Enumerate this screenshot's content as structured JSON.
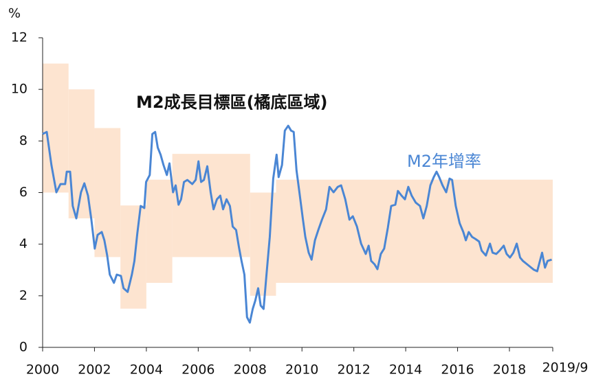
{
  "chart_data": {
    "type": "line",
    "y_label": "%",
    "target_zone": {
      "name": "M2成長目標區(橘底區域)",
      "color": "#fde4d0",
      "start": [
        2000,
        2001,
        2002,
        2003,
        2004,
        2005,
        2008,
        2009
      ],
      "end": [
        2001,
        2002,
        2003,
        2004,
        2005,
        2008,
        2009,
        2019.67
      ],
      "low": [
        6,
        5,
        3.5,
        1.5,
        2.5,
        3.5,
        2,
        2.5
      ],
      "high": [
        11,
        10,
        8.5,
        5.5,
        6.5,
        7.5,
        6,
        6.5
      ]
    },
    "x": [
      2000.0,
      2000.16,
      2000.34,
      2000.53,
      2000.69,
      2000.87,
      2000.93,
      2001.06,
      2001.16,
      2001.3,
      2001.48,
      2001.61,
      2001.75,
      2001.88,
      2002.01,
      2002.12,
      2002.28,
      2002.38,
      2002.49,
      2002.59,
      2002.75,
      2002.86,
      2003.02,
      2003.12,
      2003.28,
      2003.44,
      2003.54,
      2003.65,
      2003.78,
      2003.92,
      2003.99,
      2004.13,
      2004.23,
      2004.34,
      2004.44,
      2004.55,
      2004.66,
      2004.79,
      2004.89,
      2005.03,
      2005.13,
      2005.24,
      2005.34,
      2005.45,
      2005.58,
      2005.77,
      2005.9,
      2006.01,
      2006.11,
      2006.22,
      2006.35,
      2006.48,
      2006.59,
      2006.72,
      2006.85,
      2006.96,
      2007.09,
      2007.22,
      2007.33,
      2007.46,
      2007.57,
      2007.67,
      2007.78,
      2007.88,
      2007.99,
      2008.1,
      2008.2,
      2008.31,
      2008.41,
      2008.52,
      2008.62,
      2008.76,
      2008.89,
      2009.02,
      2009.1,
      2009.23,
      2009.34,
      2009.47,
      2009.58,
      2009.68,
      2009.79,
      2009.9,
      2010.03,
      2010.13,
      2010.26,
      2010.37,
      2010.5,
      2010.63,
      2010.77,
      2010.93,
      2011.06,
      2011.22,
      2011.38,
      2011.51,
      2011.67,
      2011.83,
      2011.96,
      2012.12,
      2012.28,
      2012.46,
      2012.57,
      2012.67,
      2012.8,
      2012.91,
      2013.04,
      2013.17,
      2013.31,
      2013.44,
      2013.6,
      2013.7,
      2013.84,
      2013.97,
      2014.1,
      2014.23,
      2014.39,
      2014.55,
      2014.68,
      2014.81,
      2014.95,
      2015.08,
      2015.19,
      2015.29,
      2015.42,
      2015.56,
      2015.69,
      2015.79,
      2015.93,
      2016.08,
      2016.22,
      2016.32,
      2016.43,
      2016.56,
      2016.69,
      2016.83,
      2016.93,
      2017.09,
      2017.25,
      2017.35,
      2017.49,
      2017.62,
      2017.78,
      2017.89,
      2018.02,
      2018.15,
      2018.28,
      2018.41,
      2018.52,
      2018.68,
      2018.78,
      2018.94,
      2019.07,
      2019.26,
      2019.37,
      2019.47,
      2019.63
    ],
    "series": [
      {
        "name": "M2年增率",
        "color": "#4a86d4",
        "values": [
          8.27,
          8.35,
          7.07,
          6.01,
          6.33,
          6.33,
          6.81,
          6.81,
          5.48,
          5.0,
          6.01,
          6.36,
          5.88,
          4.95,
          3.83,
          4.36,
          4.47,
          4.15,
          3.56,
          2.82,
          2.5,
          2.82,
          2.77,
          2.29,
          2.15,
          2.82,
          3.35,
          4.41,
          5.48,
          5.4,
          6.41,
          6.68,
          8.27,
          8.35,
          7.74,
          7.47,
          7.07,
          6.68,
          7.13,
          6.01,
          6.28,
          5.53,
          5.74,
          6.41,
          6.49,
          6.33,
          6.49,
          7.21,
          6.41,
          6.49,
          7.02,
          6.01,
          5.35,
          5.74,
          5.88,
          5.35,
          5.74,
          5.48,
          4.68,
          4.55,
          3.88,
          3.35,
          2.82,
          1.17,
          0.96,
          1.49,
          1.81,
          2.29,
          1.62,
          1.49,
          2.69,
          4.28,
          6.54,
          7.47,
          6.6,
          7.07,
          8.4,
          8.59,
          8.4,
          8.35,
          6.86,
          6.01,
          5.0,
          4.28,
          3.67,
          3.4,
          4.15,
          4.55,
          4.95,
          5.35,
          6.22,
          6.01,
          6.22,
          6.28,
          5.74,
          4.95,
          5.08,
          4.68,
          4.02,
          3.62,
          3.94,
          3.35,
          3.22,
          3.03,
          3.62,
          3.83,
          4.63,
          5.48,
          5.53,
          6.06,
          5.88,
          5.74,
          6.22,
          5.88,
          5.61,
          5.48,
          5.0,
          5.48,
          6.28,
          6.6,
          6.81,
          6.6,
          6.28,
          6.01,
          6.54,
          6.49,
          5.48,
          4.81,
          4.47,
          4.15,
          4.47,
          4.28,
          4.2,
          4.1,
          3.75,
          3.56,
          4.02,
          3.67,
          3.62,
          3.75,
          3.94,
          3.62,
          3.48,
          3.67,
          4.02,
          3.48,
          3.35,
          3.22,
          3.14,
          3.01,
          2.95,
          3.67,
          3.09,
          3.35,
          3.4
        ]
      }
    ],
    "xlim": [
      2000,
      2019.67
    ],
    "xticks": [
      2000,
      2002,
      2004,
      2006,
      2008,
      2010,
      2012,
      2014,
      2016,
      2018,
      {
        "value": 2019.67,
        "label": "2019/9"
      }
    ],
    "ylim": [
      0,
      12
    ],
    "yticks": [
      0,
      2,
      4,
      6,
      8,
      10,
      12
    ]
  }
}
